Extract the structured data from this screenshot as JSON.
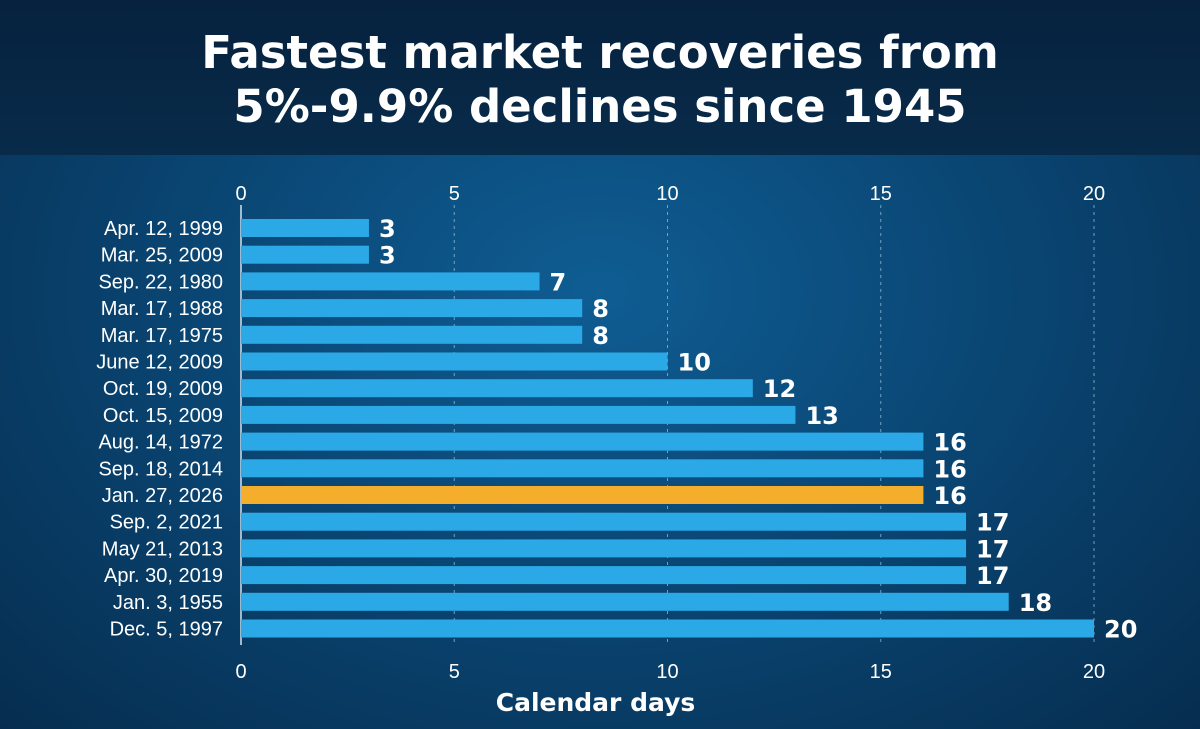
{
  "chart_data": {
    "type": "bar",
    "orientation": "horizontal",
    "title_lines": [
      "Fastest market recoveries from",
      "5%-9.9% declines since 1945"
    ],
    "xlabel": "Calendar days",
    "xlim": [
      0,
      20
    ],
    "xticks": [
      "0",
      "5",
      "10",
      "15",
      "20"
    ],
    "grid": true,
    "categories": [
      "Apr. 12, 1999",
      "Mar. 25, 2009",
      "Sep. 22, 1980",
      "Mar. 17, 1988",
      "Mar. 17, 1975",
      "June 12, 2009",
      "Oct. 19, 2009",
      "Oct. 15, 2009",
      "Aug. 14, 1972",
      "Sep. 18, 2014",
      "Jan. 27, 2026",
      "Sep. 2, 2021",
      "May 21, 2013",
      "Apr. 30, 2019",
      "Jan. 3, 1955",
      "Dec. 5, 1997"
    ],
    "values": [
      3,
      3,
      7,
      8,
      8,
      10,
      12,
      13,
      16,
      16,
      16,
      17,
      17,
      17,
      18,
      20
    ],
    "highlight_category": "Jan. 27, 2026",
    "colors": {
      "bar": "#2ba9e6",
      "highlight": "#f4ae2b",
      "grid": "#9fc6e0"
    }
  }
}
